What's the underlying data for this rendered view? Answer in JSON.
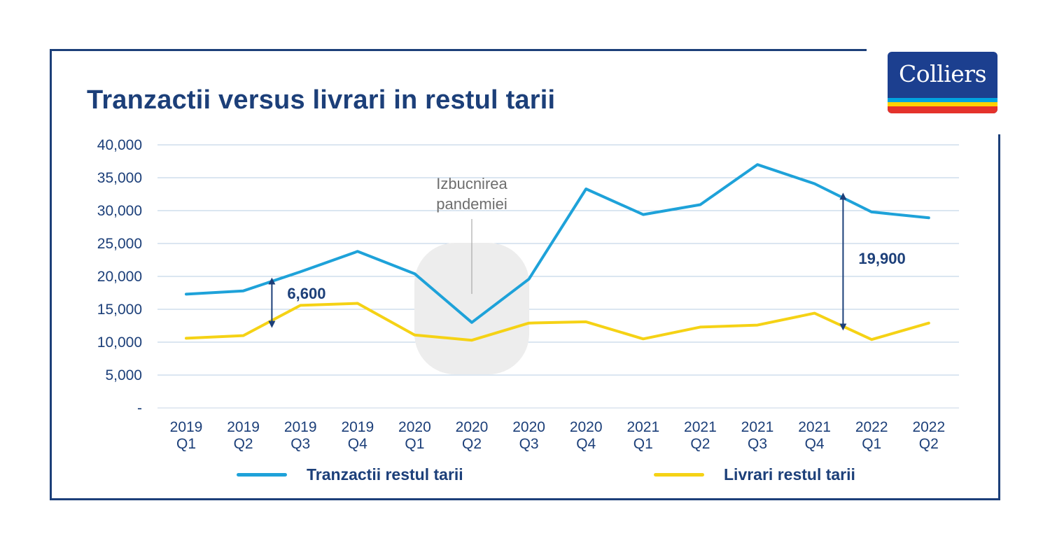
{
  "title": "Tranzactii versus livrari in restul tarii",
  "logo": {
    "text": "Colliers",
    "colors": [
      "#1c3f8f",
      "#00a3e0",
      "#ffd100",
      "#e4322b"
    ]
  },
  "chart_data": {
    "type": "line",
    "title": "Tranzactii versus livrari in restul tarii",
    "categories": [
      [
        "2019",
        "Q1"
      ],
      [
        "2019",
        "Q2"
      ],
      [
        "2019",
        "Q3"
      ],
      [
        "2019",
        "Q4"
      ],
      [
        "2020",
        "Q1"
      ],
      [
        "2020",
        "Q2"
      ],
      [
        "2020",
        "Q3"
      ],
      [
        "2020",
        "Q4"
      ],
      [
        "2021",
        "Q1"
      ],
      [
        "2021",
        "Q2"
      ],
      [
        "2021",
        "Q3"
      ],
      [
        "2021",
        "Q4"
      ],
      [
        "2022",
        "Q1"
      ],
      [
        "2022",
        "Q2"
      ]
    ],
    "y_ticks": [
      "-",
      "5,000",
      "10,000",
      "15,000",
      "20,000",
      "25,000",
      "30,000",
      "35,000",
      "40,000"
    ],
    "ylim": [
      0,
      40000
    ],
    "grid": true,
    "legend_position": "bottom",
    "series": [
      {
        "name": "Tranzactii restul tarii",
        "color": "#1ea2d9",
        "values": [
          17300,
          17800,
          20700,
          23800,
          20400,
          13000,
          19600,
          33300,
          29400,
          30900,
          37000,
          34100,
          29800,
          28900
        ]
      },
      {
        "name": "Livrari restul tarii",
        "color": "#f5d215",
        "values": [
          10600,
          11000,
          15600,
          15900,
          11100,
          10300,
          12900,
          13100,
          10500,
          12300,
          12600,
          14400,
          10400,
          12900
        ]
      }
    ],
    "annotations": [
      {
        "text": "6,600",
        "category_index": 1.5,
        "from": 12700,
        "to": 19300
      },
      {
        "text": "19,900",
        "category_index": 11.5,
        "from": 12300,
        "to": 32200
      },
      {
        "text": [
          "Izbucnirea",
          "pandemiei"
        ],
        "category_index": 5
      }
    ]
  }
}
